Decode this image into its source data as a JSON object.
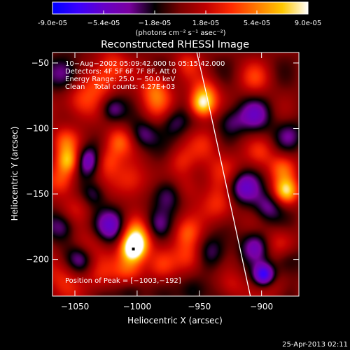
{
  "colorbar": {
    "ticks": [
      {
        "value": -9e-05,
        "label": "-9.0e-05"
      },
      {
        "value": -5.4e-05,
        "label": "−5.4e-05"
      },
      {
        "value": -1.8e-05,
        "label": "−1.8e-05"
      },
      {
        "value": 1.8e-05,
        "label": "1.8e-05"
      },
      {
        "value": 5.4e-05,
        "label": "5.4e-05"
      },
      {
        "value": 9e-05,
        "label": "9.0e-05"
      }
    ],
    "range": [
      -9e-05,
      9e-05
    ],
    "units": "(photons cm⁻² s⁻¹ asec⁻²)",
    "colormap": [
      "#0000ff",
      "#3a00ff",
      "#6600c8",
      "#7a00a0",
      "#000000",
      "#7a0000",
      "#c00000",
      "#ff2a00",
      "#ff7a00",
      "#ffc800",
      "#ffffff"
    ]
  },
  "image_info": {
    "time_range": "10−Aug−2002 05:09:42.000 to 05:15:42.000",
    "detectors": "Detectors: 4F 5F 6F 7F 8F, Att 0",
    "energy": "Energy Range: 25.0 − 50.0 keV",
    "clean": "Clean    Total counts: 4.27E+03",
    "peak": "Position of Peak = [−1003,−192]"
  },
  "footer": {
    "date": "25-Apr-2013 02:11"
  },
  "chart_data": {
    "type": "heatmap",
    "title": "Reconstructed RHESSI Image",
    "xlabel": "Heliocentric X (arcsec)",
    "ylabel": "Heliocentric Y (arcsec)",
    "xlim": [
      -1068,
      -870
    ],
    "ylim": [
      -228,
      -42
    ],
    "x_ticks": [
      {
        "value": -1050,
        "label": "−1050"
      },
      {
        "value": -1000,
        "label": "−1000"
      },
      {
        "value": -950,
        "label": "−950"
      },
      {
        "value": -900,
        "label": "−900"
      }
    ],
    "y_ticks": [
      {
        "value": -50,
        "label": "−50"
      },
      {
        "value": -100,
        "label": "−100"
      },
      {
        "value": -150,
        "label": "−150"
      },
      {
        "value": -200,
        "label": "−200"
      }
    ],
    "limb": [
      [
        -952,
        -42
      ],
      [
        -944,
        -75
      ],
      [
        -936,
        -110
      ],
      [
        -928,
        -145
      ],
      [
        -920,
        -180
      ],
      [
        -912,
        -215
      ],
      [
        -909,
        -228
      ]
    ],
    "peak": [
      -1003,
      -192
    ],
    "blobs": [
      {
        "x": -1003,
        "y": -192,
        "v": 9e-05,
        "s": 7
      },
      {
        "x": -1000,
        "y": -182,
        "v": 7e-05,
        "s": 9
      },
      {
        "x": -1007,
        "y": -207,
        "v": 5e-05,
        "s": 9
      },
      {
        "x": -1055,
        "y": -125,
        "v": 6.5e-05,
        "s": 7
      },
      {
        "x": -1058,
        "y": -110,
        "v": 4e-05,
        "s": 8
      },
      {
        "x": -1060,
        "y": -140,
        "v": 4e-05,
        "s": 8
      },
      {
        "x": -948,
        "y": -82,
        "v": 7.5e-05,
        "s": 7
      },
      {
        "x": -945,
        "y": -72,
        "v": 4e-05,
        "s": 8
      },
      {
        "x": -880,
        "y": -148,
        "v": 7e-05,
        "s": 7
      },
      {
        "x": -883,
        "y": -130,
        "v": 4.5e-05,
        "s": 8
      },
      {
        "x": -958,
        "y": -198,
        "v": 4.5e-05,
        "s": 9
      },
      {
        "x": -960,
        "y": -180,
        "v": 3.5e-05,
        "s": 8
      },
      {
        "x": -1015,
        "y": -110,
        "v": 4.5e-05,
        "s": 8
      },
      {
        "x": -1025,
        "y": -125,
        "v": 4e-05,
        "s": 8
      },
      {
        "x": -1005,
        "y": -140,
        "v": 4e-05,
        "s": 10
      },
      {
        "x": -1045,
        "y": -80,
        "v": 4e-05,
        "s": 10
      },
      {
        "x": -1030,
        "y": -65,
        "v": 3.5e-05,
        "s": 9
      },
      {
        "x": -1020,
        "y": -52,
        "v": 3.5e-05,
        "s": 9
      },
      {
        "x": -985,
        "y": -80,
        "v": 3.5e-05,
        "s": 10
      },
      {
        "x": -985,
        "y": -68,
        "v": 3e-05,
        "s": 8
      },
      {
        "x": -935,
        "y": -160,
        "v": 3.5e-05,
        "s": 10
      },
      {
        "x": -930,
        "y": -130,
        "v": 3e-05,
        "s": 10
      },
      {
        "x": -945,
        "y": -112,
        "v": 2.5e-05,
        "s": 9
      },
      {
        "x": -960,
        "y": -145,
        "v": 3e-05,
        "s": 9
      },
      {
        "x": -965,
        "y": -125,
        "v": 2.5e-05,
        "s": 8
      },
      {
        "x": -1060,
        "y": -215,
        "v": 3e-05,
        "s": 11
      },
      {
        "x": -1040,
        "y": -190,
        "v": 2.5e-05,
        "s": 9
      },
      {
        "x": -1030,
        "y": -212,
        "v": 2.5e-05,
        "s": 9
      },
      {
        "x": -900,
        "y": -118,
        "v": 2.5e-05,
        "s": 8
      },
      {
        "x": -885,
        "y": -188,
        "v": 3e-05,
        "s": 9
      },
      {
        "x": -890,
        "y": -222,
        "v": 2e-05,
        "s": 8
      },
      {
        "x": -925,
        "y": -220,
        "v": 2.5e-05,
        "s": 8
      },
      {
        "x": -980,
        "y": -205,
        "v": 2.5e-05,
        "s": 8
      },
      {
        "x": -1050,
        "y": -160,
        "v": 2e-05,
        "s": 9
      },
      {
        "x": -905,
        "y": -62,
        "v": 3e-05,
        "s": 9
      },
      {
        "x": -960,
        "y": -50,
        "v": 2.5e-05,
        "s": 8
      },
      {
        "x": -1040,
        "y": -125,
        "v": -6e-05,
        "s": 8
      },
      {
        "x": -1020,
        "y": -175,
        "v": -5e-05,
        "s": 9
      },
      {
        "x": -1045,
        "y": -200,
        "v": -4e-05,
        "s": 8
      },
      {
        "x": -898,
        "y": -212,
        "v": -7.5e-05,
        "s": 6
      },
      {
        "x": -905,
        "y": -190,
        "v": -4e-05,
        "s": 8
      },
      {
        "x": -1020,
        "y": -85,
        "v": -4e-05,
        "s": 7
      },
      {
        "x": -1058,
        "y": -58,
        "v": -4e-05,
        "s": 9
      },
      {
        "x": -995,
        "y": -105,
        "v": -3.5e-05,
        "s": 8
      },
      {
        "x": -975,
        "y": -150,
        "v": -4e-05,
        "s": 9
      },
      {
        "x": -985,
        "y": -175,
        "v": -3e-05,
        "s": 8
      },
      {
        "x": -905,
        "y": -90,
        "v": -4e-05,
        "s": 9
      },
      {
        "x": -925,
        "y": -95,
        "v": -3e-05,
        "s": 8
      },
      {
        "x": -915,
        "y": -145,
        "v": -5e-05,
        "s": 9
      },
      {
        "x": -895,
        "y": -160,
        "v": -3.5e-05,
        "s": 8
      },
      {
        "x": -940,
        "y": -195,
        "v": -3.5e-05,
        "s": 9
      },
      {
        "x": -955,
        "y": -225,
        "v": -3e-05,
        "s": 8
      },
      {
        "x": -1060,
        "y": -175,
        "v": -3.5e-05,
        "s": 8
      },
      {
        "x": -1035,
        "y": -150,
        "v": -3e-05,
        "s": 7
      },
      {
        "x": -970,
        "y": -95,
        "v": -3e-05,
        "s": 8
      },
      {
        "x": -1005,
        "y": -225,
        "v": -3e-05,
        "s": 8
      },
      {
        "x": -880,
        "y": -200,
        "v": -3e-05,
        "s": 8
      },
      {
        "x": -878,
        "y": -105,
        "v": -3e-05,
        "s": 8
      }
    ]
  }
}
